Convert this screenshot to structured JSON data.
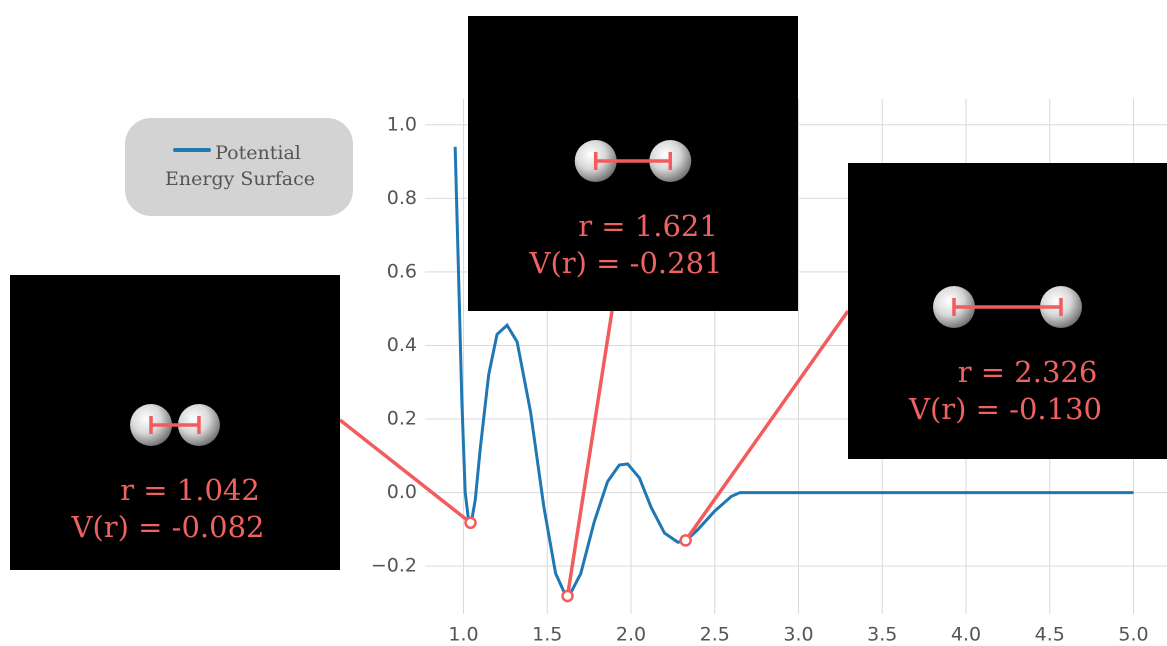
{
  "chart_data": {
    "type": "line",
    "series": [
      {
        "name": "Potential Energy Surface",
        "color": "#1f77b4",
        "x": [
          0.95,
          0.97,
          0.99,
          1.01,
          1.03,
          1.045,
          1.07,
          1.1,
          1.15,
          1.2,
          1.26,
          1.32,
          1.4,
          1.48,
          1.55,
          1.62,
          1.7,
          1.78,
          1.86,
          1.93,
          1.98,
          2.05,
          2.12,
          2.2,
          2.28,
          2.33,
          2.4,
          2.5,
          2.6,
          2.65,
          3.0,
          4.0,
          5.0
        ],
        "values": [
          0.94,
          0.6,
          0.25,
          0.0,
          -0.075,
          -0.085,
          -0.02,
          0.12,
          0.32,
          0.43,
          0.455,
          0.41,
          0.22,
          -0.04,
          -0.22,
          -0.29,
          -0.22,
          -0.08,
          0.03,
          0.075,
          0.078,
          0.04,
          -0.04,
          -0.11,
          -0.135,
          -0.13,
          -0.1,
          -0.05,
          -0.01,
          0.0,
          0.0,
          0.0,
          0.0
        ]
      }
    ],
    "xlim": [
      0.77,
      5.2
    ],
    "ylim": [
      -0.33,
      1.07
    ],
    "xticks": [
      {
        "value": 1,
        "label": "1.0"
      },
      {
        "value": 1.5,
        "label": "1.5"
      },
      {
        "value": 2,
        "label": "2.0"
      },
      {
        "value": 2.5,
        "label": "2.5"
      },
      {
        "value": 3,
        "label": "3.0"
      },
      {
        "value": 3.5,
        "label": "3.5"
      },
      {
        "value": 4,
        "label": "4.0"
      },
      {
        "value": 4.5,
        "label": "4.5"
      },
      {
        "value": 5,
        "label": "5.0"
      }
    ],
    "yticks": [
      {
        "value": -0.2,
        "label": "−0.2"
      },
      {
        "value": 0,
        "label": "0.0"
      },
      {
        "value": 0.2,
        "label": "0.2"
      },
      {
        "value": 0.4,
        "label": "0.4"
      },
      {
        "value": 0.6,
        "label": "0.6"
      },
      {
        "value": 0.8,
        "label": "0.8"
      },
      {
        "value": 1,
        "label": "1.0"
      }
    ],
    "grid": true,
    "annotation_color": "#f25c5c",
    "annotations": [
      {
        "x": 1.042,
        "y": -0.082,
        "r_label": "r  = 1.042",
        "v_label": "V(r) = -0.082"
      },
      {
        "x": 1.621,
        "y": -0.281,
        "r_label": "r = 1.621",
        "v_label": "V(r) = -0.281"
      },
      {
        "x": 2.326,
        "y": -0.13,
        "r_label": "r = 2.326",
        "v_label": "V(r) = -0.130"
      }
    ]
  }
}
